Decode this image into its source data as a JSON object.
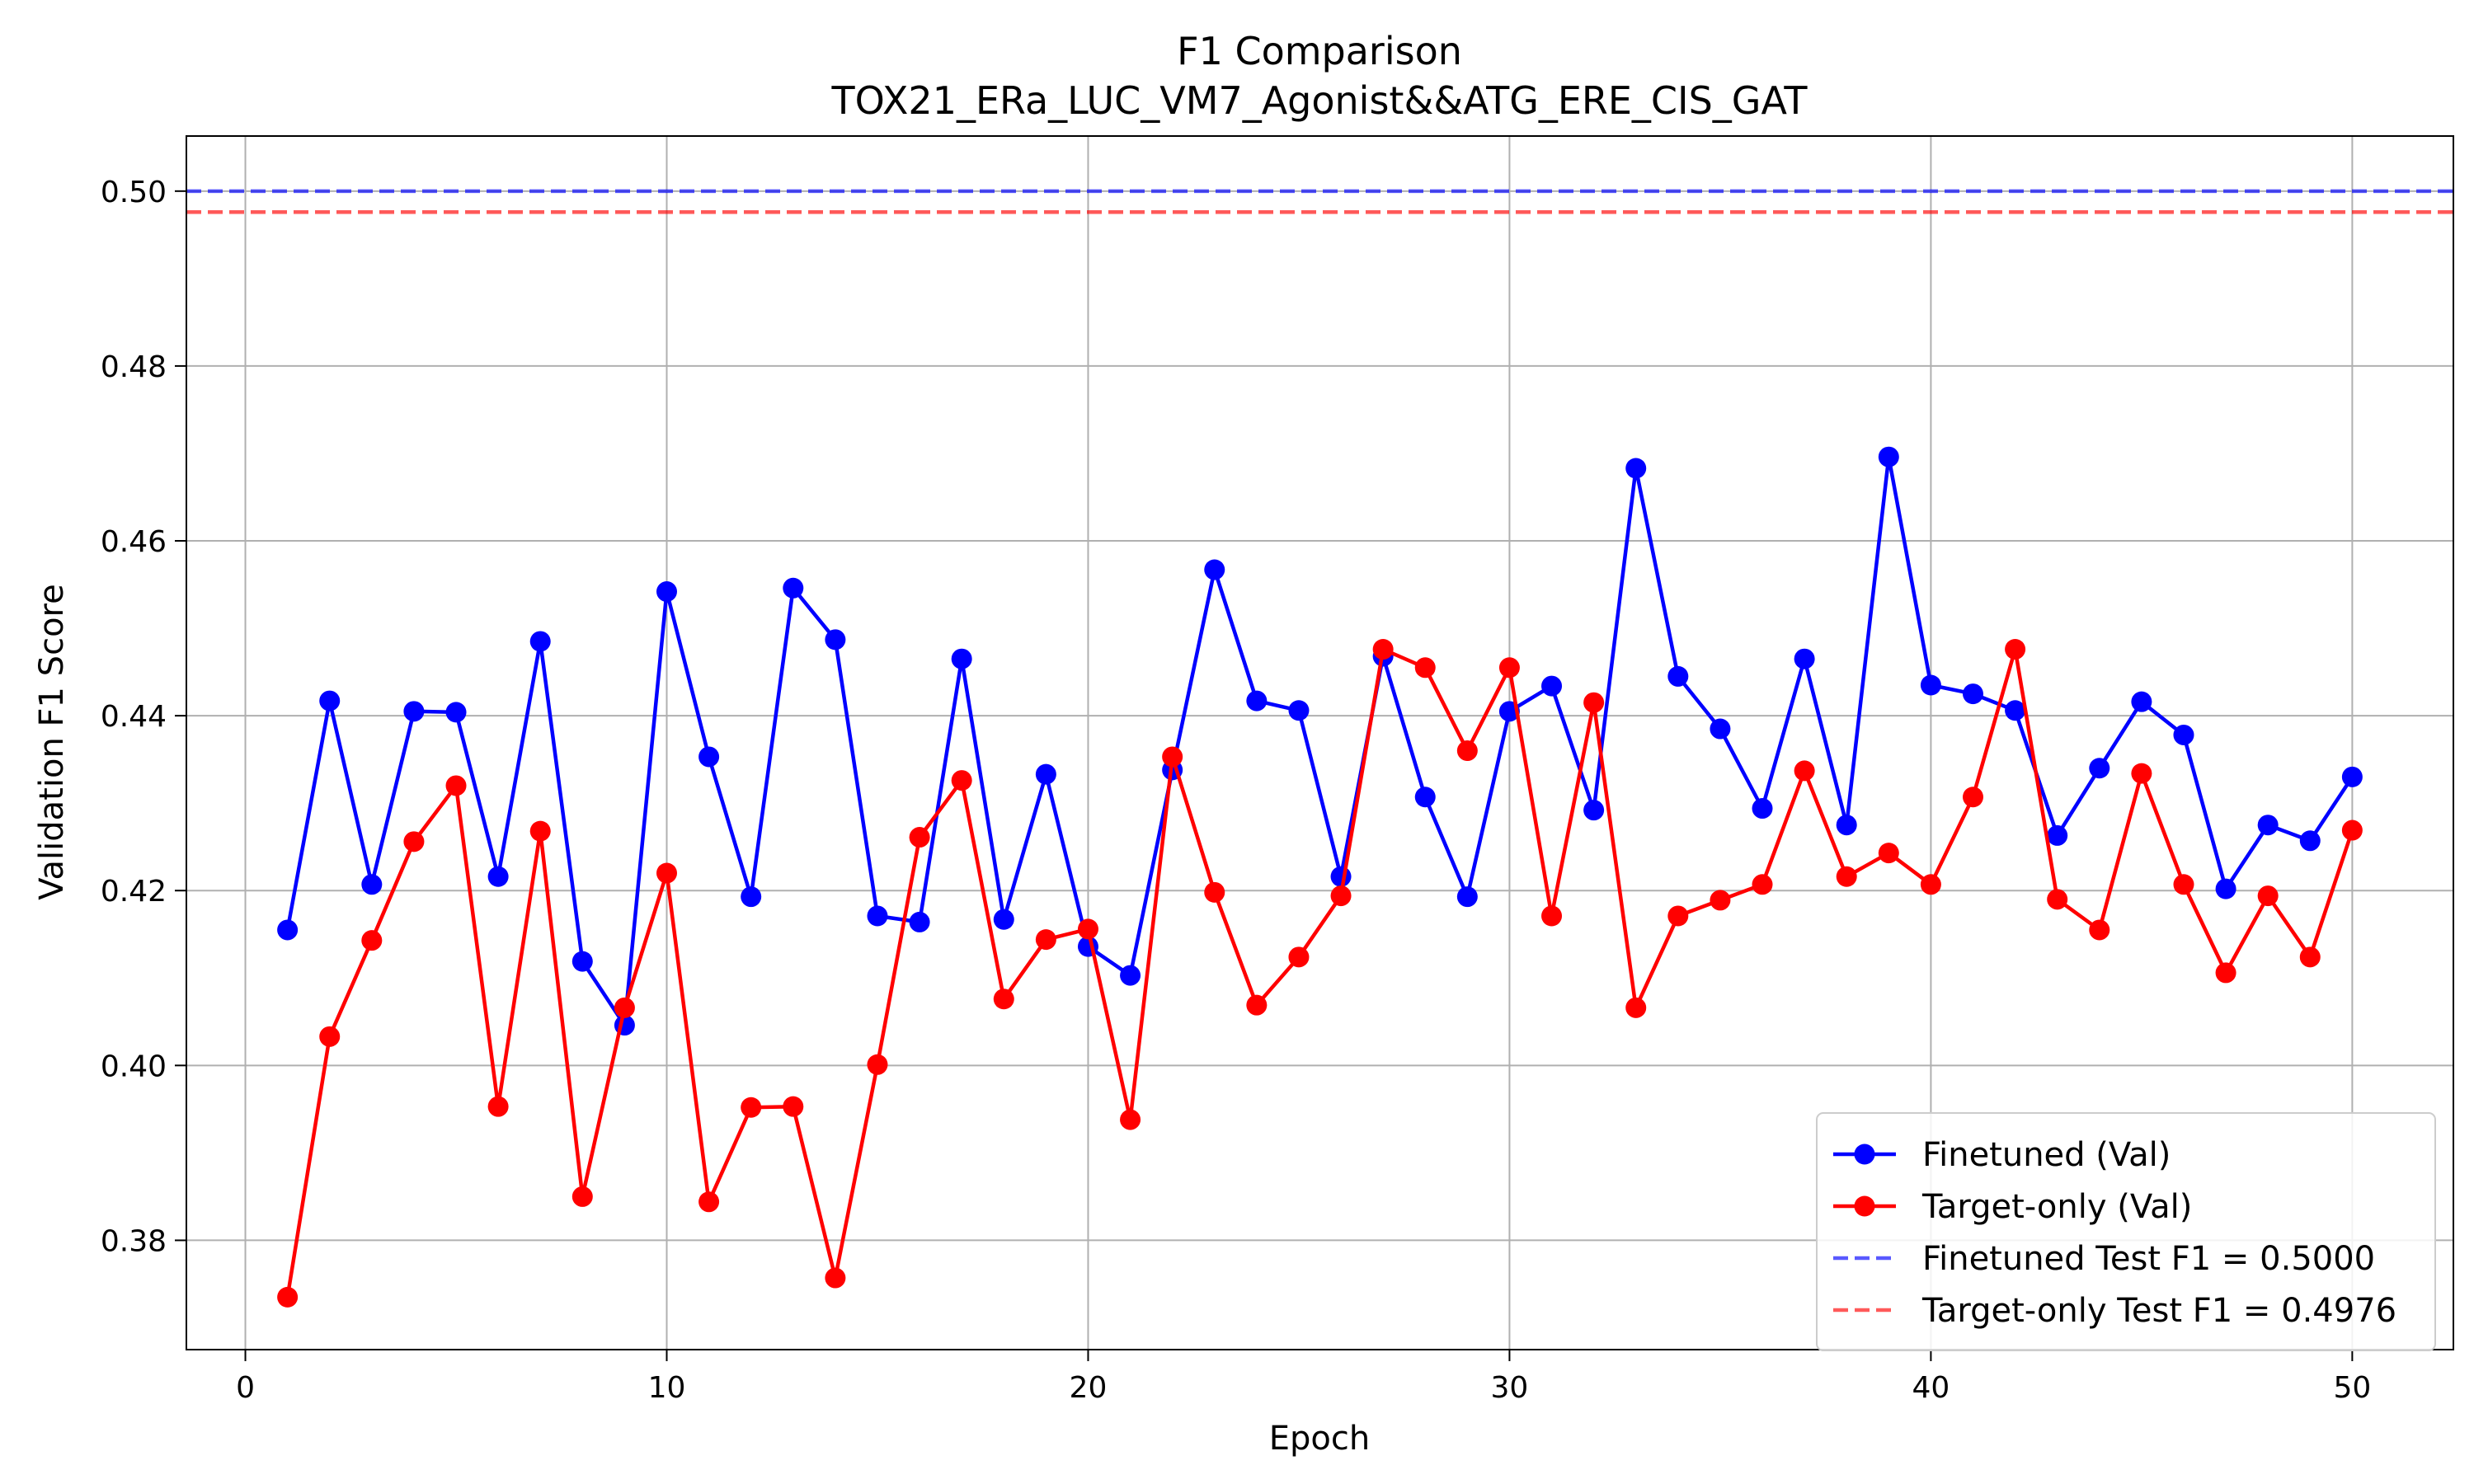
{
  "chart_data": {
    "type": "line",
    "title": "F1 Comparison",
    "subtitle": "TOX21_ERa_LUC_VM7_Agonist&&ATG_ERE_CIS_GAT",
    "xlabel": "Epoch",
    "ylabel": "Validation F1 Score",
    "xlim": [
      -1.4,
      52.4
    ],
    "ylim": [
      0.3675,
      0.5063
    ],
    "xticks": [
      0,
      10,
      20,
      30,
      40,
      50
    ],
    "yticks": [
      0.38,
      0.4,
      0.42,
      0.44,
      0.46,
      0.48,
      0.5
    ],
    "xtick_labels": [
      "0",
      "10",
      "20",
      "30",
      "40",
      "50"
    ],
    "ytick_labels": [
      "0.38",
      "0.40",
      "0.42",
      "0.44",
      "0.46",
      "0.48",
      "0.50"
    ],
    "grid": true,
    "legend_position": "bottom-right",
    "x": [
      1,
      2,
      3,
      4,
      5,
      6,
      7,
      8,
      9,
      10,
      11,
      12,
      13,
      14,
      15,
      16,
      17,
      18,
      19,
      20,
      21,
      22,
      23,
      24,
      25,
      26,
      27,
      28,
      29,
      30,
      31,
      32,
      33,
      34,
      35,
      36,
      37,
      38,
      39,
      40,
      41,
      42,
      43,
      44,
      45,
      46,
      47,
      48,
      49,
      50
    ],
    "series": [
      {
        "name": "Finetuned (Val)",
        "color": "#0000ff",
        "values": [
          0.4155,
          0.4417,
          0.4207,
          0.4405,
          0.4404,
          0.4216,
          0.4485,
          0.4119,
          0.4046,
          0.4542,
          0.4353,
          0.4193,
          0.4546,
          0.4487,
          0.4171,
          0.4164,
          0.4465,
          0.4167,
          0.4333,
          0.4136,
          0.4103,
          0.4338,
          0.4567,
          0.4417,
          0.4406,
          0.4216,
          0.4468,
          0.4307,
          0.4193,
          0.4405,
          0.4434,
          0.4292,
          0.4683,
          0.4445,
          0.4385,
          0.4294,
          0.4465,
          0.4275,
          0.4696,
          0.4435,
          0.4425,
          0.4406,
          0.4263,
          0.434,
          0.4416,
          0.4378,
          0.4202,
          0.4275,
          0.4257,
          0.433
        ]
      },
      {
        "name": "Target-only (Val)",
        "color": "#ff0000",
        "values": [
          0.3735,
          0.4033,
          0.4143,
          0.4256,
          0.432,
          0.3953,
          0.4268,
          0.385,
          0.4066,
          0.422,
          0.3844,
          0.3952,
          0.3953,
          0.3757,
          0.4001,
          0.4261,
          0.4326,
          0.4076,
          0.4144,
          0.4156,
          0.3938,
          0.4353,
          0.4198,
          0.4069,
          0.4124,
          0.4194,
          0.4476,
          0.4455,
          0.436,
          0.4455,
          0.4171,
          0.4415,
          0.4066,
          0.4171,
          0.4189,
          0.4207,
          0.4337,
          0.4216,
          0.4243,
          0.4207,
          0.4307,
          0.4476,
          0.419,
          0.4155,
          0.4334,
          0.4207,
          0.4106,
          0.4194,
          0.4124,
          0.4269
        ]
      }
    ],
    "reference_lines": [
      {
        "name": "Finetuned Test F1 = 0.5000",
        "value": 0.5,
        "color": "#0000ff"
      },
      {
        "name": "Target-only Test F1 = 0.4976",
        "value": 0.4976,
        "color": "#ff0000"
      }
    ]
  }
}
